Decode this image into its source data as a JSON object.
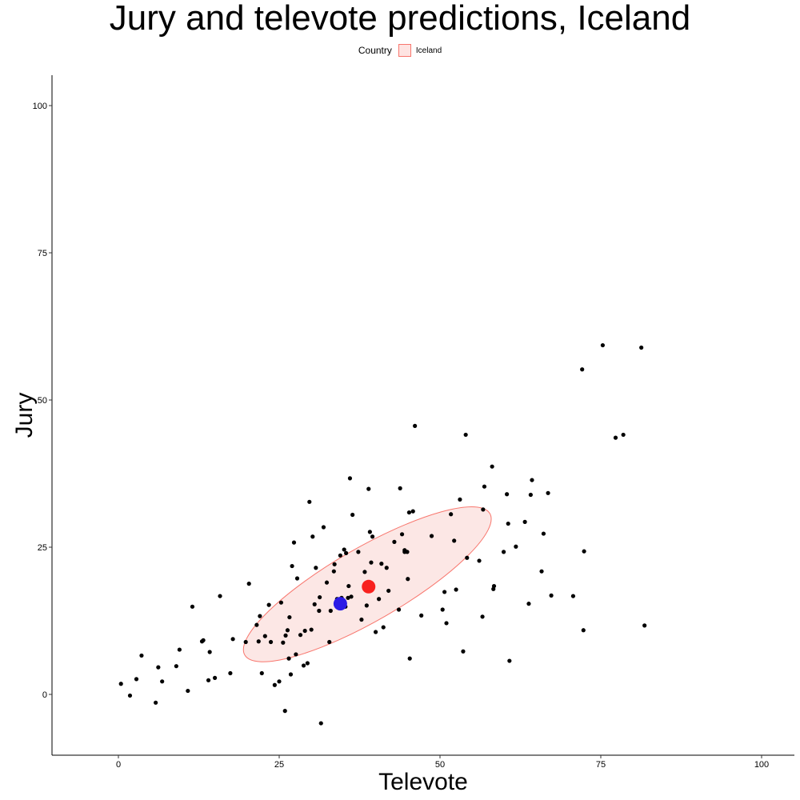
{
  "chart_data": {
    "type": "scatter",
    "title": "Jury and televote predictions, Iceland",
    "xlabel": "Televote",
    "ylabel": "Jury",
    "xlim": [
      -10,
      105
    ],
    "ylim": [
      -10,
      105
    ],
    "x_ticks": [
      0,
      25,
      50,
      75,
      100
    ],
    "y_ticks": [
      0,
      25,
      50,
      75,
      100
    ],
    "grid": false,
    "legend": {
      "title": "Country",
      "placement": "top",
      "entries": [
        "Iceland"
      ]
    },
    "colors": {
      "points": "#000000",
      "highlight_red": "#F8211E",
      "highlight_blue": "#2B1BE6",
      "ellipse_stroke": "#F8766D",
      "ellipse_fill": "#FCE4E2"
    },
    "series": [
      {
        "x": [
          0.4,
          1.8,
          2.8,
          3.6,
          5.8,
          6.2,
          6.8,
          9.0,
          9.5,
          10.8,
          11.5,
          13.0,
          13.2,
          14.0,
          14.2,
          15.0,
          15.8,
          17.4,
          17.8,
          19.8,
          20.3,
          21.5,
          21.8,
          22.0,
          22.3,
          22.8,
          23.4,
          23.7,
          24.3,
          25.0,
          25.3,
          25.6,
          25.9,
          26.0,
          26.3,
          26.5,
          26.6,
          26.8,
          27.0,
          27.3,
          27.6,
          27.8,
          28.3,
          28.8,
          29.0,
          29.4,
          29.7,
          30.0,
          30.2,
          30.7,
          31.3,
          31.5,
          31.9,
          32.4,
          32.8,
          33.0,
          33.5,
          33.6,
          34.0,
          34.5,
          34.7,
          35.1,
          35.3,
          35.4,
          35.7,
          35.8,
          36.0,
          36.2,
          37.3,
          37.8,
          38.3,
          38.6,
          38.9,
          39.1,
          39.3,
          39.5,
          40.0,
          40.5,
          40.9,
          41.2,
          41.7,
          42.0,
          42.9,
          43.6,
          43.8,
          44.1,
          44.5,
          44.9,
          45.0,
          45.3,
          45.8,
          46.1,
          47.1,
          48.7,
          50.4,
          50.7,
          51.0,
          51.7,
          52.2,
          52.5,
          53.1,
          53.6,
          54.0,
          54.2,
          56.1,
          56.6,
          56.7,
          56.9,
          58.1,
          58.3,
          58.4,
          59.9,
          60.4,
          60.6,
          60.8,
          61.8,
          63.2,
          63.8,
          64.1,
          64.3,
          65.8,
          66.1,
          66.8,
          67.3,
          70.7,
          72.1,
          72.3,
          72.4,
          75.3,
          77.3,
          78.5,
          81.3,
          81.8
        ],
        "y": [
          1.8,
          -0.2,
          2.6,
          6.6,
          -1.4,
          4.6,
          2.2,
          4.8,
          7.6,
          0.6,
          14.9,
          9.0,
          9.2,
          2.4,
          7.2,
          2.8,
          16.7,
          3.6,
          9.4,
          8.9,
          18.8,
          11.8,
          9.0,
          13.3,
          3.6,
          9.9,
          15.2,
          8.9,
          1.6,
          2.2,
          15.6,
          8.8,
          -2.8,
          10.0,
          10.9,
          6.1,
          13.1,
          3.4,
          21.8,
          25.8,
          6.8,
          19.7,
          10.1,
          4.9,
          10.8,
          5.3,
          32.7,
          11.0,
          26.8,
          21.5,
          16.5,
          -4.9,
          28.4,
          19.0,
          8.9,
          14.2,
          20.9,
          22.1,
          16.2,
          23.6,
          16.4,
          24.6,
          14.9,
          24.0,
          16.4,
          18.4,
          36.7,
          16.6,
          24.2,
          12.7,
          20.8,
          15.1,
          34.9,
          27.6,
          22.4,
          26.8,
          10.6,
          16.2,
          22.2,
          11.4,
          21.5,
          17.6,
          25.9,
          14.4,
          35.0,
          27.2,
          24.5,
          24.2,
          19.6,
          6.1,
          31.1,
          45.6,
          13.4,
          26.9,
          14.4,
          17.4,
          12.1,
          30.6,
          26.1,
          17.8,
          33.1,
          7.3,
          44.1,
          23.2,
          22.7,
          13.2,
          31.4,
          35.3,
          38.7,
          17.9,
          18.4,
          24.2,
          34.0,
          29.0,
          5.7,
          25.1,
          29.3,
          15.4,
          33.9,
          36.4,
          20.9,
          27.3,
          34.2,
          16.8,
          16.7,
          55.2,
          10.9,
          24.3,
          59.3,
          43.6,
          44.1,
          58.9,
          11.7
        ],
        "x_extra": [
          44.5,
          45.2,
          36.4,
          30.5,
          31.2
        ],
        "y_extra": [
          24.2,
          30.9,
          30.5,
          15.3,
          14.2
        ]
      },
      {
        "name": "Iceland",
        "mean_red": {
          "x": 38.9,
          "y": 18.3
        },
        "mean_blue": {
          "x": 34.5,
          "y": 15.4
        },
        "ellipse": {
          "cx": 38.7,
          "cy": 18.7,
          "rx": 22.0,
          "ry": 6.2,
          "angle_deg": -30
        }
      }
    ]
  }
}
